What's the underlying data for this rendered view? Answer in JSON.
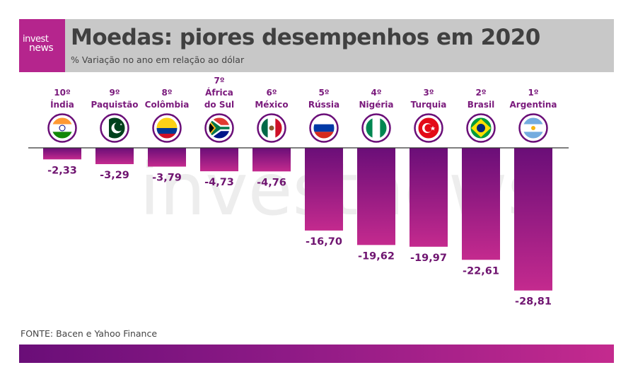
{
  "header": {
    "logo_line1": "invest",
    "logo_line2": "news",
    "title": "Moedas: piores desempenhos em 2020",
    "subtitle": "% Variação no ano em relação ao dólar"
  },
  "watermark": "investnews",
  "source": "FONTE: Bacen e Yahoo Finance",
  "colors": {
    "header_bg": "#c8c8c8",
    "logo_bg": "#b5258d",
    "bar_top": "#6a0e78",
    "bar_bottom": "#c42a8e",
    "label": "#6f1470",
    "rank_label": "#7a1a7c"
  },
  "chart_data": {
    "type": "bar",
    "title": "Moedas: piores desempenhos em 2020",
    "subtitle": "% Variação no ano em relação ao dólar",
    "categories": [
      "Índia",
      "Paquistão",
      "Colômbia",
      "África do Sul",
      "México",
      "Rússia",
      "Nigéria",
      "Turquia",
      "Brasil",
      "Argentina"
    ],
    "category_lines": [
      [
        "10º",
        "Índia"
      ],
      [
        "9º",
        "Paquistão"
      ],
      [
        "8º",
        "Colômbia"
      ],
      [
        "7º",
        "África",
        "do Sul"
      ],
      [
        "6º",
        "México"
      ],
      [
        "5º",
        "Rússia"
      ],
      [
        "4º",
        "Nigéria"
      ],
      [
        "3º",
        "Turquia"
      ],
      [
        "2º",
        "Brasil"
      ],
      [
        "1º",
        "Argentina"
      ]
    ],
    "flags": [
      "india-flag-icon",
      "pakistan-flag-icon",
      "colombia-flag-icon",
      "south-africa-flag-icon",
      "mexico-flag-icon",
      "russia-flag-icon",
      "nigeria-flag-icon",
      "turkey-flag-icon",
      "brazil-flag-icon",
      "argentina-flag-icon"
    ],
    "values": [
      -2.33,
      -3.29,
      -3.79,
      -4.73,
      -4.76,
      -16.7,
      -19.62,
      -19.97,
      -22.61,
      -28.81
    ],
    "value_labels": [
      "-2,33",
      "-3,29",
      "-3,79",
      "-4,73",
      "-4,76",
      "-16,70",
      "-19,62",
      "-19,97",
      "-22,61",
      "-28,81"
    ],
    "ylim": [
      -30,
      0
    ],
    "grid": false,
    "legend": "none"
  }
}
